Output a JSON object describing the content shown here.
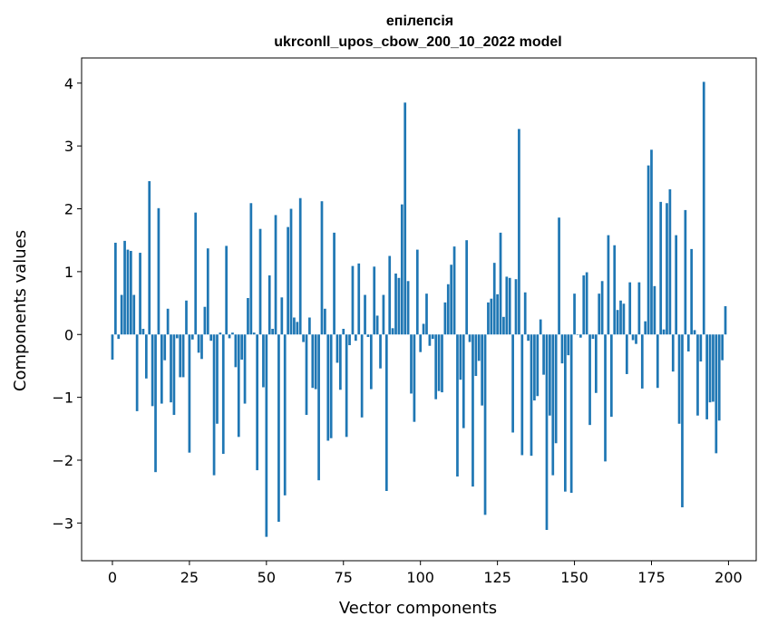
{
  "chart_data": {
    "type": "bar",
    "title_lines": [
      "епілепсія",
      "ukrconll_upos_cbow_200_10_2022 model"
    ],
    "xlabel": "Vector components",
    "ylabel": "Components values",
    "xlim": [
      -10,
      209
    ],
    "ylim": [
      -3.6,
      4.4
    ],
    "xticks": [
      0,
      25,
      50,
      75,
      100,
      125,
      150,
      175,
      200
    ],
    "yticks": [
      -3,
      -2,
      -1,
      0,
      1,
      2,
      3,
      4
    ],
    "ytick_labels": [
      "−3",
      "−2",
      "−1",
      "0",
      "1",
      "2",
      "3",
      "4"
    ],
    "grid": false,
    "legend": "none",
    "bar_color": "#1f77b4",
    "x": [
      0,
      1,
      2,
      3,
      4,
      5,
      6,
      7,
      8,
      9,
      10,
      11,
      12,
      13,
      14,
      15,
      16,
      17,
      18,
      19,
      20,
      21,
      22,
      23,
      24,
      25,
      26,
      27,
      28,
      29,
      30,
      31,
      32,
      33,
      34,
      35,
      36,
      37,
      38,
      39,
      40,
      41,
      42,
      43,
      44,
      45,
      46,
      47,
      48,
      49,
      50,
      51,
      52,
      53,
      54,
      55,
      56,
      57,
      58,
      59,
      60,
      61,
      62,
      63,
      64,
      65,
      66,
      67,
      68,
      69,
      70,
      71,
      72,
      73,
      74,
      75,
      76,
      77,
      78,
      79,
      80,
      81,
      82,
      83,
      84,
      85,
      86,
      87,
      88,
      89,
      90,
      91,
      92,
      93,
      94,
      95,
      96,
      97,
      98,
      99,
      100,
      101,
      102,
      103,
      104,
      105,
      106,
      107,
      108,
      109,
      110,
      111,
      112,
      113,
      114,
      115,
      116,
      117,
      118,
      119,
      120,
      121,
      122,
      123,
      124,
      125,
      126,
      127,
      128,
      129,
      130,
      131,
      132,
      133,
      134,
      135,
      136,
      137,
      138,
      139,
      140,
      141,
      142,
      143,
      144,
      145,
      146,
      147,
      148,
      149,
      150,
      151,
      152,
      153,
      154,
      155,
      156,
      157,
      158,
      159,
      160,
      161,
      162,
      163,
      164,
      165,
      166,
      167,
      168,
      169,
      170,
      171,
      172,
      173,
      174,
      175,
      176,
      177,
      178,
      179,
      180,
      181,
      182,
      183,
      184,
      185,
      186,
      187,
      188,
      189,
      190,
      191,
      192,
      193,
      194,
      195,
      196,
      197,
      198,
      199
    ],
    "values": [
      -0.4,
      1.46,
      -0.07,
      0.63,
      1.49,
      1.35,
      1.33,
      0.63,
      -1.22,
      1.3,
      0.09,
      -0.7,
      2.44,
      -1.14,
      -2.19,
      2.01,
      -1.1,
      -0.41,
      0.41,
      -1.08,
      -1.28,
      -0.06,
      -0.68,
      -0.68,
      0.54,
      -1.88,
      -0.08,
      1.94,
      -0.29,
      -0.39,
      0.44,
      1.37,
      -0.1,
      -2.24,
      -1.42,
      0.03,
      -1.9,
      1.41,
      -0.06,
      0.03,
      -0.52,
      -1.63,
      -0.4,
      -1.1,
      0.58,
      2.09,
      0.03,
      -2.16,
      1.68,
      -0.84,
      -3.22,
      0.94,
      0.09,
      1.9,
      -2.98,
      0.59,
      -2.56,
      1.71,
      2.0,
      0.27,
      0.2,
      2.17,
      -0.12,
      -1.28,
      0.27,
      -0.85,
      -0.87,
      -2.32,
      2.12,
      0.41,
      -1.69,
      -1.65,
      1.62,
      -0.45,
      -0.88,
      0.09,
      -1.63,
      -0.17,
      1.09,
      -0.1,
      1.13,
      -1.32,
      0.63,
      -0.04,
      -0.87,
      1.08,
      0.3,
      -0.54,
      0.63,
      -2.49,
      1.25,
      0.1,
      0.97,
      0.9,
      2.07,
      3.69,
      0.85,
      -0.94,
      -1.39,
      1.35,
      -0.28,
      0.17,
      0.65,
      -0.18,
      -0.07,
      -1.03,
      -0.9,
      -0.92,
      0.51,
      0.8,
      1.11,
      1.4,
      -2.26,
      -0.72,
      -1.49,
      1.5,
      -0.12,
      -2.42,
      -0.66,
      -0.42,
      -1.13,
      -2.87,
      0.51,
      0.57,
      1.14,
      0.64,
      1.62,
      0.28,
      0.92,
      0.9,
      -1.56,
      0.88,
      3.27,
      -1.92,
      0.67,
      -0.1,
      -1.93,
      -1.05,
      -0.98,
      0.24,
      -0.64,
      -3.11,
      -1.29,
      -2.24,
      -1.73,
      1.86,
      -0.46,
      -2.5,
      -0.33,
      -2.52,
      0.65,
      0.0,
      -0.05,
      0.94,
      0.99,
      -1.44,
      -0.07,
      -0.93,
      0.65,
      0.85,
      -2.02,
      1.58,
      -1.31,
      1.42,
      0.39,
      0.54,
      0.49,
      -0.63,
      0.83,
      -0.09,
      -0.15,
      0.83,
      -0.86,
      0.21,
      2.69,
      2.94,
      0.77,
      -0.85,
      2.11,
      0.08,
      2.09,
      2.31,
      -0.59,
      1.58,
      -1.42,
      -2.75,
      1.98,
      -0.27,
      1.36,
      0.07,
      -1.29,
      -0.43,
      4.02,
      -1.35,
      -1.08,
      -1.07,
      -1.89,
      -1.37,
      -0.41,
      0.45
    ]
  }
}
